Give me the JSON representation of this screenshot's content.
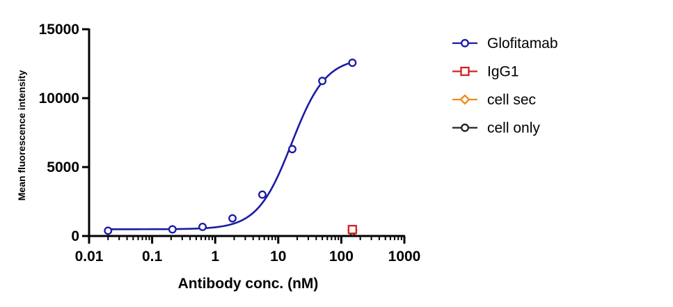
{
  "chart_data": {
    "type": "scatter",
    "xlabel": "Antibody conc. (nM)",
    "ylabel": "Mean fluorescence intensity",
    "xscale": "log",
    "xlim": [
      0.01,
      1000
    ],
    "ylim": [
      0,
      15000
    ],
    "x_ticks": [
      {
        "value": 0.01,
        "label": "0.01"
      },
      {
        "value": 0.1,
        "label": "0.1"
      },
      {
        "value": 1,
        "label": "1"
      },
      {
        "value": 10,
        "label": "10"
      },
      {
        "value": 100,
        "label": "100"
      },
      {
        "value": 1000,
        "label": "1000"
      }
    ],
    "y_ticks": [
      {
        "value": 0,
        "label": "0"
      },
      {
        "value": 5000,
        "label": "5000"
      },
      {
        "value": 10000,
        "label": "10000"
      },
      {
        "value": 15000,
        "label": "15000"
      }
    ],
    "grid": false,
    "legend_position": "right",
    "series": [
      {
        "name": "Glofitamab",
        "color": "#1a1aa6",
        "marker": "circle",
        "x": [
          0.02,
          0.21,
          0.63,
          1.88,
          5.6,
          16.7,
          50,
          150
        ],
        "y": [
          380,
          480,
          660,
          1280,
          3000,
          6300,
          11250,
          12570
        ],
        "fit": {
          "model": "4PL",
          "bottom": 490,
          "top": 12950,
          "ec50": 16.3,
          "hill": 1.6
        }
      },
      {
        "name": "IgG1",
        "color": "#d42020",
        "marker": "square",
        "x": [
          150
        ],
        "y": [
          470
        ]
      },
      {
        "name": "cell sec",
        "color": "#f08a1a",
        "marker": "diamond",
        "x": [
          150
        ],
        "y": [
          430
        ]
      },
      {
        "name": "cell only",
        "color": "#222222",
        "marker": "circle",
        "x": [
          150
        ],
        "y": [
          330
        ]
      }
    ]
  }
}
